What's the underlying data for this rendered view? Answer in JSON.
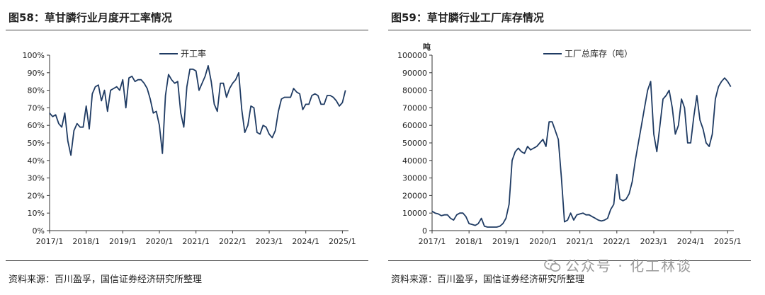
{
  "colors": {
    "line": "#1f3b63",
    "axis": "#333333",
    "text": "#222222",
    "watermark": "#9a9a9a"
  },
  "watermark": {
    "text": "公众号 · 化工林谈",
    "icon": "wechat-icon"
  },
  "charts": [
    {
      "title": "图58：草甘膦行业月度开工率情况",
      "source": "资料来源：百川盈孚，国信证券经济研究所整理",
      "unit": "",
      "legend": "开工率"
    },
    {
      "title": "图59：草甘膦行业工厂库存情况",
      "source": "资料来源：百川盈孚，国信证券经济研究所整理",
      "unit": "吨",
      "legend": "工厂总库存（吨）"
    }
  ],
  "chart_data": [
    {
      "type": "line",
      "title": "",
      "xlabel": "",
      "ylabel": "",
      "x_ticks": [
        "2017/1",
        "2018/1",
        "2019/1",
        "2020/1",
        "2021/1",
        "2022/1",
        "2023/1",
        "2024/1",
        "2025/1"
      ],
      "y_ticks": [
        "0%",
        "10%",
        "20%",
        "30%",
        "40%",
        "50%",
        "60%",
        "70%",
        "80%",
        "90%",
        "100%"
      ],
      "xlim": [
        "2017/1",
        "2025/3"
      ],
      "ylim": [
        0,
        100
      ],
      "grid": false,
      "legend_position": "top-center",
      "series": [
        {
          "name": "开工率",
          "x_start": "2017/1",
          "step": "month",
          "values": [
            67,
            65,
            66,
            61,
            59,
            67,
            51,
            43,
            57,
            61,
            59,
            59,
            71,
            58,
            78,
            82,
            83,
            74,
            80,
            68,
            80,
            81,
            82,
            80,
            86,
            70,
            87,
            88,
            85,
            86,
            86,
            84,
            81,
            75,
            67,
            68,
            60,
            44,
            77,
            89,
            86,
            84,
            85,
            67,
            59,
            82,
            92,
            92,
            91,
            80,
            84,
            88,
            94,
            85,
            72,
            68,
            84,
            84,
            76,
            81,
            84,
            86,
            90,
            69,
            56,
            60,
            71,
            70,
            56,
            55,
            60,
            59,
            55,
            53,
            57,
            68,
            75,
            76,
            76,
            76,
            81,
            79,
            78,
            69,
            72,
            72,
            77,
            78,
            77,
            72,
            72,
            77,
            77,
            76,
            74,
            71,
            73,
            80
          ]
        }
      ]
    },
    {
      "type": "line",
      "title": "",
      "xlabel": "",
      "ylabel": "吨",
      "x_ticks": [
        "2017/1",
        "2018/1",
        "2019/1",
        "2020/1",
        "2021/1",
        "2022/1",
        "2023/1",
        "2024/1",
        "2025/1"
      ],
      "y_ticks": [
        "0",
        "10000",
        "20000",
        "30000",
        "40000",
        "50000",
        "60000",
        "70000",
        "80000",
        "90000",
        "100000"
      ],
      "xlim": [
        "2017/1",
        "2025/3"
      ],
      "ylim": [
        0,
        100000
      ],
      "grid": false,
      "legend_position": "top-center",
      "series": [
        {
          "name": "工厂总库存（吨）",
          "x_start": "2017/1",
          "step": "month",
          "values": [
            11000,
            10000,
            9500,
            8500,
            9000,
            9000,
            7000,
            6000,
            9000,
            10000,
            10000,
            8000,
            4000,
            3500,
            3000,
            4000,
            7000,
            2500,
            2000,
            2000,
            2000,
            2000,
            2500,
            4000,
            7000,
            15000,
            40000,
            45000,
            47000,
            45000,
            44000,
            48000,
            46000,
            47000,
            48000,
            50000,
            52000,
            48000,
            62000,
            62000,
            57000,
            52000,
            30000,
            5000,
            6000,
            10000,
            6000,
            9000,
            9500,
            10000,
            9000,
            9000,
            8000,
            7000,
            6000,
            5500,
            6000,
            7000,
            12000,
            15000,
            32000,
            18000,
            17000,
            18000,
            21000,
            28000,
            40000,
            50000,
            60000,
            70000,
            80000,
            85000,
            55000,
            45000,
            60000,
            75000,
            77000,
            80000,
            70000,
            55000,
            60000,
            75000,
            70000,
            50000,
            50000,
            65000,
            77000,
            63000,
            58000,
            50000,
            48000,
            55000,
            75000,
            82000,
            85000,
            87000,
            85000,
            82000
          ]
        }
      ]
    }
  ]
}
